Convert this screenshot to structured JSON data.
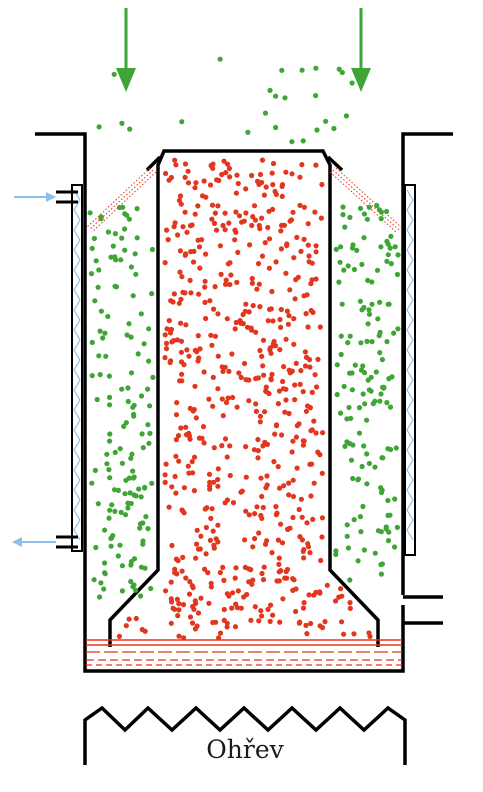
{
  "diagram": {
    "heater_label": "Ohřev",
    "colors": {
      "wall": "#000000",
      "cold_particle": "#3fa535",
      "hot_particle": "#e2361e",
      "flow_arrow": "#3fa535",
      "coolant_arrow": "#8fbfe8",
      "liquid_line": "#e2361e",
      "cooling_jacket": "#8fbfe8"
    },
    "icons": {
      "inflow": "arrow-down-icon",
      "coolant_in": "arrow-right-icon",
      "coolant_out": "arrow-left-icon",
      "heater": "zigzag-heating-element-icon"
    }
  }
}
